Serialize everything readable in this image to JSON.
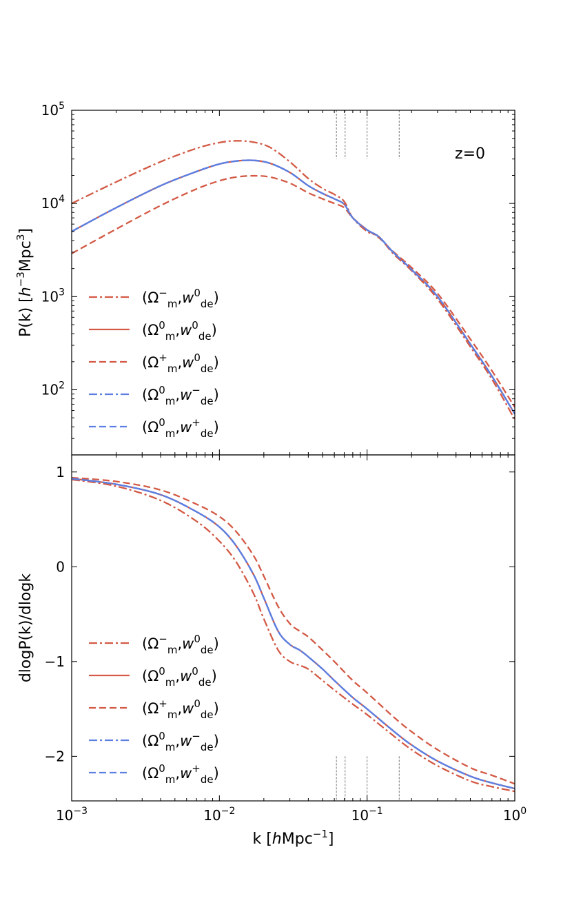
{
  "colors": {
    "red": "#d35944",
    "blue": "#5b7fe3",
    "vline": "#777777"
  },
  "chart_data": [
    {
      "type": "line",
      "panel": "top",
      "xscale": "log",
      "yscale": "log",
      "xlim": [
        0.001,
        1
      ],
      "ylim": [
        20,
        100000
      ],
      "ylabel": "P(k) [h⁻³Mpc³]",
      "annotation": "z=0",
      "yticks": [
        {
          "value": 100,
          "base": "10",
          "exp": "2"
        },
        {
          "value": 1000,
          "base": "10",
          "exp": "3"
        },
        {
          "value": 10000,
          "base": "10",
          "exp": "4"
        },
        {
          "value": 100000,
          "base": "10",
          "exp": "5"
        }
      ],
      "vlines": [
        0.062,
        0.071,
        0.1,
        0.165
      ],
      "vline_span": [
        30000,
        100000
      ],
      "legend": {
        "position": "lower-left"
      },
      "series": [
        {
          "name": "(Ω⁻m, w⁰de)",
          "color": "red",
          "style": "dashdot",
          "x": [
            0.001,
            0.002,
            0.004,
            0.007,
            0.01,
            0.013,
            0.017,
            0.022,
            0.03,
            0.04,
            0.05,
            0.06,
            0.07,
            0.08,
            0.1,
            0.12,
            0.15,
            0.2,
            0.3,
            0.5,
            0.7,
            1.0
          ],
          "y": [
            10000,
            17000,
            28000,
            39000,
            45000,
            47000,
            45500,
            40000,
            28000,
            18500,
            14500,
            12500,
            10500,
            7000,
            5000,
            4400,
            2900,
            1900,
            940,
            290,
            130,
            48
          ]
        },
        {
          "name": "(Ω⁰m, w⁰de)",
          "color": "red",
          "style": "solid",
          "x": [
            0.001,
            0.002,
            0.004,
            0.007,
            0.01,
            0.013,
            0.017,
            0.022,
            0.03,
            0.04,
            0.05,
            0.06,
            0.07,
            0.08,
            0.1,
            0.12,
            0.15,
            0.2,
            0.3,
            0.5,
            0.7,
            1.0
          ],
          "y": [
            5000,
            9000,
            15500,
            22000,
            26500,
            28500,
            29000,
            27000,
            21500,
            15500,
            12800,
            11200,
            9800,
            7000,
            5200,
            4400,
            3000,
            1950,
            1000,
            310,
            140,
            55
          ]
        },
        {
          "name": "(Ω⁺m, w⁰de)",
          "color": "red",
          "style": "dashed",
          "x": [
            0.001,
            0.002,
            0.004,
            0.007,
            0.01,
            0.013,
            0.017,
            0.022,
            0.03,
            0.04,
            0.05,
            0.06,
            0.07,
            0.08,
            0.1,
            0.12,
            0.15,
            0.2,
            0.3,
            0.5,
            0.7,
            1.0
          ],
          "y": [
            2900,
            5300,
            9500,
            14300,
            17500,
            19200,
            19800,
            19200,
            16500,
            13000,
            11200,
            10000,
            9000,
            7000,
            5200,
            4300,
            3050,
            2050,
            1080,
            350,
            160,
            65
          ]
        },
        {
          "name": "(Ω⁰m, w⁻de)",
          "color": "blue",
          "style": "dashdot",
          "x": [
            0.001,
            0.002,
            0.004,
            0.007,
            0.01,
            0.013,
            0.017,
            0.022,
            0.03,
            0.04,
            0.05,
            0.06,
            0.07,
            0.08,
            0.1,
            0.12,
            0.15,
            0.2,
            0.3,
            0.5,
            0.7,
            1.0
          ],
          "y": [
            5000,
            9000,
            15500,
            22000,
            26500,
            28500,
            29000,
            27000,
            21500,
            15500,
            12800,
            11200,
            9800,
            7000,
            5200,
            4400,
            3000,
            1950,
            1000,
            310,
            140,
            55
          ]
        },
        {
          "name": "(Ω⁰m, w⁺de)",
          "color": "blue",
          "style": "dashed",
          "x": [
            0.001,
            0.002,
            0.004,
            0.007,
            0.01,
            0.013,
            0.017,
            0.022,
            0.03,
            0.04,
            0.05,
            0.06,
            0.07,
            0.08,
            0.1,
            0.12,
            0.15,
            0.2,
            0.3,
            0.5,
            0.7,
            1.0
          ],
          "y": [
            5000,
            9000,
            15500,
            22000,
            26500,
            28500,
            29000,
            27000,
            21500,
            15500,
            12800,
            11200,
            9800,
            7000,
            5200,
            4400,
            3000,
            1950,
            1000,
            310,
            140,
            55
          ]
        }
      ]
    },
    {
      "type": "line",
      "panel": "bottom",
      "xscale": "log",
      "yscale": "linear",
      "xlim": [
        0.001,
        1
      ],
      "ylim": [
        -2.47,
        1.18
      ],
      "xlabel": "k [hMpc⁻¹]",
      "ylabel": "dlogP(k)/dlogk",
      "xticks": [
        {
          "value": 0.001,
          "base": "10",
          "exp": "−3"
        },
        {
          "value": 0.01,
          "base": "10",
          "exp": "−2"
        },
        {
          "value": 0.1,
          "base": "10",
          "exp": "−1"
        },
        {
          "value": 1,
          "base": "10",
          "exp": "0"
        }
      ],
      "yticks": [
        {
          "value": 1,
          "label": "1"
        },
        {
          "value": 0,
          "label": "0"
        },
        {
          "value": -1,
          "label": "−1"
        },
        {
          "value": -2,
          "label": "−2"
        }
      ],
      "vlines": [
        0.062,
        0.071,
        0.1,
        0.165
      ],
      "vline_span": [
        -2.47,
        -2.0
      ],
      "legend": {
        "position": "lower-left"
      },
      "series": [
        {
          "name": "(Ω⁻m, w⁰de)",
          "color": "red",
          "style": "dashdot",
          "x": [
            0.001,
            0.002,
            0.004,
            0.007,
            0.01,
            0.013,
            0.017,
            0.02,
            0.025,
            0.03,
            0.035,
            0.04,
            0.05,
            0.06,
            0.08,
            0.1,
            0.15,
            0.2,
            0.3,
            0.5,
            0.7,
            1.0
          ],
          "y": [
            0.92,
            0.85,
            0.7,
            0.48,
            0.27,
            0.05,
            -0.28,
            -0.55,
            -0.88,
            -1.0,
            -1.04,
            -1.08,
            -1.2,
            -1.3,
            -1.45,
            -1.56,
            -1.78,
            -1.93,
            -2.1,
            -2.26,
            -2.32,
            -2.37
          ]
        },
        {
          "name": "(Ω⁰m, w⁰de)",
          "color": "red",
          "style": "solid",
          "x": [
            0.001,
            0.002,
            0.004,
            0.007,
            0.01,
            0.013,
            0.017,
            0.02,
            0.025,
            0.03,
            0.035,
            0.04,
            0.05,
            0.06,
            0.08,
            0.1,
            0.15,
            0.2,
            0.3,
            0.5,
            0.7,
            1.0
          ],
          "y": [
            0.93,
            0.87,
            0.76,
            0.58,
            0.42,
            0.22,
            -0.08,
            -0.33,
            -0.68,
            -0.82,
            -0.88,
            -0.95,
            -1.08,
            -1.2,
            -1.38,
            -1.5,
            -1.73,
            -1.88,
            -2.05,
            -2.21,
            -2.28,
            -2.34
          ]
        },
        {
          "name": "(Ω⁺m, w⁰de)",
          "color": "red",
          "style": "dashed",
          "x": [
            0.001,
            0.002,
            0.004,
            0.007,
            0.01,
            0.013,
            0.017,
            0.02,
            0.025,
            0.03,
            0.035,
            0.04,
            0.05,
            0.06,
            0.08,
            0.1,
            0.15,
            0.2,
            0.3,
            0.5,
            0.7,
            1.0
          ],
          "y": [
            0.94,
            0.9,
            0.81,
            0.66,
            0.53,
            0.37,
            0.12,
            -0.1,
            -0.42,
            -0.6,
            -0.68,
            -0.74,
            -0.88,
            -1.0,
            -1.2,
            -1.33,
            -1.58,
            -1.74,
            -1.93,
            -2.12,
            -2.2,
            -2.29
          ]
        },
        {
          "name": "(Ω⁰m, w⁻de)",
          "color": "blue",
          "style": "dashdot",
          "x": [
            0.001,
            0.002,
            0.004,
            0.007,
            0.01,
            0.013,
            0.017,
            0.02,
            0.025,
            0.03,
            0.035,
            0.04,
            0.05,
            0.06,
            0.08,
            0.1,
            0.15,
            0.2,
            0.3,
            0.5,
            0.7,
            1.0
          ],
          "y": [
            0.93,
            0.87,
            0.76,
            0.58,
            0.42,
            0.22,
            -0.08,
            -0.33,
            -0.68,
            -0.82,
            -0.88,
            -0.95,
            -1.08,
            -1.2,
            -1.38,
            -1.5,
            -1.73,
            -1.88,
            -2.05,
            -2.21,
            -2.28,
            -2.34
          ]
        },
        {
          "name": "(Ω⁰m, w⁺de)",
          "color": "blue",
          "style": "dashed",
          "x": [
            0.001,
            0.002,
            0.004,
            0.007,
            0.01,
            0.013,
            0.017,
            0.02,
            0.025,
            0.03,
            0.035,
            0.04,
            0.05,
            0.06,
            0.08,
            0.1,
            0.15,
            0.2,
            0.3,
            0.5,
            0.7,
            1.0
          ],
          "y": [
            0.93,
            0.87,
            0.76,
            0.58,
            0.42,
            0.22,
            -0.08,
            -0.33,
            -0.68,
            -0.82,
            -0.88,
            -0.95,
            -1.08,
            -1.2,
            -1.38,
            -1.5,
            -1.73,
            -1.88,
            -2.05,
            -2.21,
            -2.28,
            -2.34
          ]
        }
      ]
    }
  ]
}
